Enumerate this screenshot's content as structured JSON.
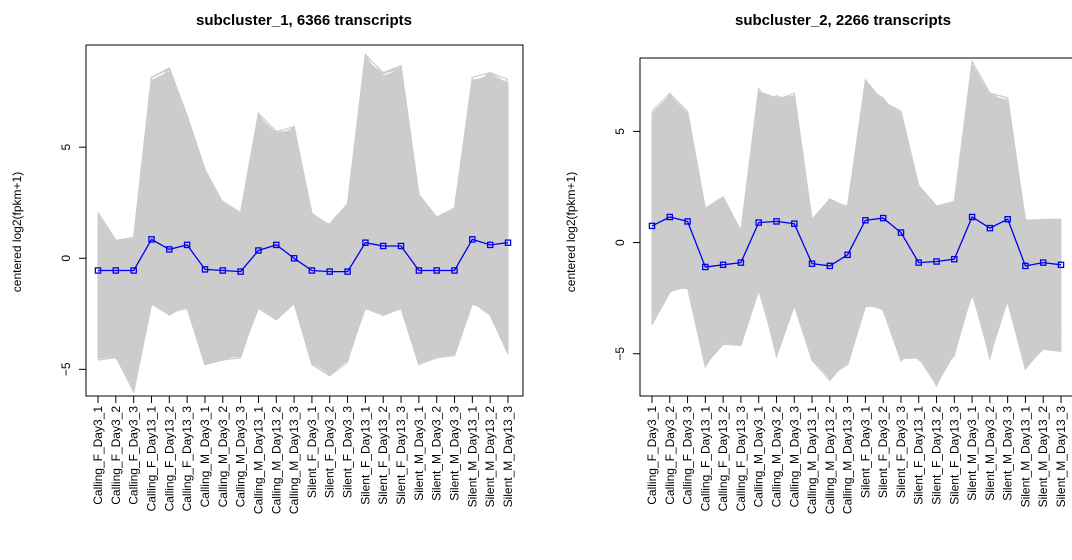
{
  "chart_data": [
    {
      "type": "line",
      "title": "subcluster_1, 6366 transcripts",
      "ylabel": "centered log2(fpkm+1)",
      "ylim": [
        -6.2,
        9.6
      ],
      "yticks": [
        -5,
        0,
        5
      ],
      "categories": [
        "Calling_F_Day3_1",
        "Calling_F_Day3_2",
        "Calling_F_Day3_3",
        "Calling_F_Day13_1",
        "Calling_F_Day13_2",
        "Calling_F_Day13_3",
        "Calling_M_Day3_1",
        "Calling_M_Day3_2",
        "Calling_M_Day3_3",
        "Calling_M_Day13_1",
        "Calling_M_Day13_2",
        "Calling_M_Day13_3",
        "Silent_F_Day3_1",
        "Silent_F_Day3_2",
        "Silent_F_Day3_3",
        "Silent_F_Day13_1",
        "Silent_F_Day13_2",
        "Silent_F_Day13_3",
        "Silent_M_Day3_1",
        "Silent_M_Day3_2",
        "Silent_M_Day3_3",
        "Silent_M_Day13_1",
        "Silent_M_Day13_2",
        "Silent_M_Day13_3"
      ],
      "mean": [
        -0.55,
        -0.55,
        -0.55,
        0.85,
        0.4,
        0.6,
        -0.5,
        -0.55,
        -0.6,
        0.35,
        0.6,
        0.0,
        -0.55,
        -0.6,
        -0.6,
        0.7,
        0.55,
        0.55,
        -0.55,
        -0.55,
        -0.55,
        0.85,
        0.6,
        0.7
      ],
      "upper": [
        2.0,
        0.8,
        0.9,
        8.0,
        8.4,
        6.3,
        3.9,
        2.5,
        2.0,
        6.4,
        5.6,
        5.8,
        2.0,
        1.5,
        2.4,
        9.0,
        8.2,
        8.5,
        2.8,
        1.8,
        2.2,
        8.0,
        8.2,
        7.9
      ],
      "lower": [
        -4.5,
        -4.4,
        -5.9,
        -2.0,
        -2.5,
        -2.2,
        -4.7,
        -4.5,
        -4.4,
        -2.2,
        -2.7,
        -2.0,
        -4.7,
        -5.2,
        -4.6,
        -2.2,
        -2.5,
        -2.2,
        -4.7,
        -4.4,
        -4.3,
        -2.0,
        -2.5,
        -4.2
      ],
      "colors": {
        "traces": "#cccccc",
        "mean": "#0000ee"
      }
    },
    {
      "type": "line",
      "title": "subcluster_2, 2266 transcripts",
      "ylabel": "centered log2(fpkm+1)",
      "ylim": [
        -6.9,
        8.3
      ],
      "yticks": [
        -5,
        0,
        5
      ],
      "categories": [
        "Calling_F_Day3_1",
        "Calling_F_Day3_2",
        "Calling_F_Day3_3",
        "Calling_F_Day13_1",
        "Calling_F_Day13_2",
        "Calling_F_Day13_3",
        "Calling_M_Day3_1",
        "Calling_M_Day3_2",
        "Calling_M_Day3_3",
        "Calling_M_Day13_1",
        "Calling_M_Day13_2",
        "Calling_M_Day13_3",
        "Silent_F_Day3_1",
        "Silent_F_Day3_2",
        "Silent_F_Day3_3",
        "Silent_F_Day13_1",
        "Silent_F_Day13_2",
        "Silent_F_Day13_3",
        "Silent_M_Day3_1",
        "Silent_M_Day3_2",
        "Silent_M_Day3_3",
        "Silent_M_Day13_1",
        "Silent_M_Day13_2",
        "Silent_M_Day13_3"
      ],
      "mean": [
        0.75,
        1.15,
        0.95,
        -1.1,
        -1.0,
        -0.9,
        0.9,
        0.95,
        0.85,
        -0.95,
        -1.05,
        -0.55,
        1.0,
        1.1,
        0.45,
        -0.9,
        -0.85,
        -0.75,
        1.15,
        0.65,
        1.05,
        -1.05,
        -0.9,
        -1.0
      ],
      "upper": [
        5.8,
        6.6,
        5.8,
        1.5,
        2.0,
        0.5,
        6.8,
        6.5,
        6.6,
        1.0,
        1.9,
        1.6,
        7.2,
        6.4,
        5.8,
        2.5,
        1.6,
        1.8,
        8.0,
        6.6,
        6.4,
        1.0,
        1.0,
        1.0
      ],
      "lower": [
        -3.6,
        -2.2,
        -2.0,
        -5.5,
        -4.5,
        -4.6,
        -2.1,
        -5.0,
        -2.8,
        -5.2,
        -6.1,
        -5.4,
        -2.8,
        -3.0,
        -5.2,
        -5.2,
        -6.4,
        -5.0,
        -2.3,
        -5.1,
        -2.6,
        -5.6,
        -4.8,
        -4.9
      ],
      "colors": {
        "traces": "#cccccc",
        "mean": "#0000ee"
      }
    }
  ]
}
